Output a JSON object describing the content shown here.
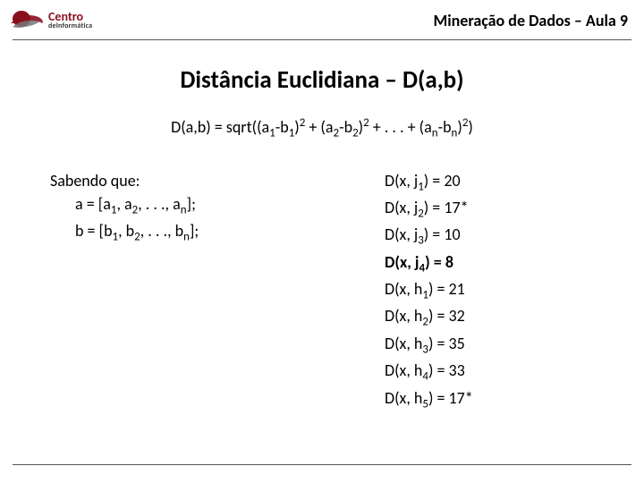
{
  "header": {
    "logo": {
      "name_top": "Centro",
      "name_mid": "deInformática",
      "colors": {
        "brand": "#8a0f1e",
        "gray": "#555555"
      }
    },
    "course_title": "Mineração de Dados – Aula 9"
  },
  "title": "Distância Euclidiana – D(a,b)",
  "formula": "D(a,b) = sqrt((a1-b1)2 + (a2-b2)2 + . . . + (an-bn)2)",
  "formula_parts": {
    "prefix": "D(a,b) = sqrt((a",
    "s1": "1",
    "mid1": "-b",
    "s2": "1",
    "mid2": ")",
    "p1": "2",
    "mid3": " + (a",
    "s3": "2",
    "mid4": "-b",
    "s4": "2",
    "mid5": ")",
    "p2": "2",
    "mid6": " + . . . + (a",
    "s5": "n",
    "mid7": "-b",
    "s6": "n",
    "mid8": ")",
    "p3": "2",
    "suffix": ")"
  },
  "left": {
    "heading": "Sabendo que:",
    "line_a_pre": "a = [a",
    "la1": "1",
    "la_m1": ", a",
    "la2": "2",
    "la_m2": ", . . ., a",
    "lan": "n",
    "la_end": "];",
    "line_b_pre": "b = [b",
    "lb1": "1",
    "lb_m1": ", b",
    "lb2": "2",
    "lb_m2": ", . . ., b",
    "lbn": "n",
    "lb_end": "];"
  },
  "right": {
    "rows": [
      {
        "pre": "D(x, j",
        "sub": "1",
        "post": ") = 20",
        "bold": false
      },
      {
        "pre": "D(x, j",
        "sub": "2",
        "post": ") = 17*",
        "bold": false
      },
      {
        "pre": "D(x, j",
        "sub": "3",
        "post": ") = 10",
        "bold": false
      },
      {
        "pre": "D(x, j",
        "sub": "4",
        "post": ") = 8",
        "bold": true
      },
      {
        "pre": "D(x, h",
        "sub": "1",
        "post": ") = 21",
        "bold": false
      },
      {
        "pre": "D(x, h",
        "sub": "2",
        "post": ") = 32",
        "bold": false
      },
      {
        "pre": "D(x, h",
        "sub": "3",
        "post": ") = 35",
        "bold": false
      },
      {
        "pre": "D(x, h",
        "sub": "4",
        "post": ") = 33",
        "bold": false
      },
      {
        "pre": "D(x, h",
        "sub": "5",
        "post": ") = 17*",
        "bold": false
      }
    ]
  },
  "styling": {
    "page_bg": "#ffffff",
    "rule_color": "#555555",
    "title_fontsize_pt": 20,
    "body_fontsize_pt": 13,
    "header_fontsize_pt": 13
  }
}
